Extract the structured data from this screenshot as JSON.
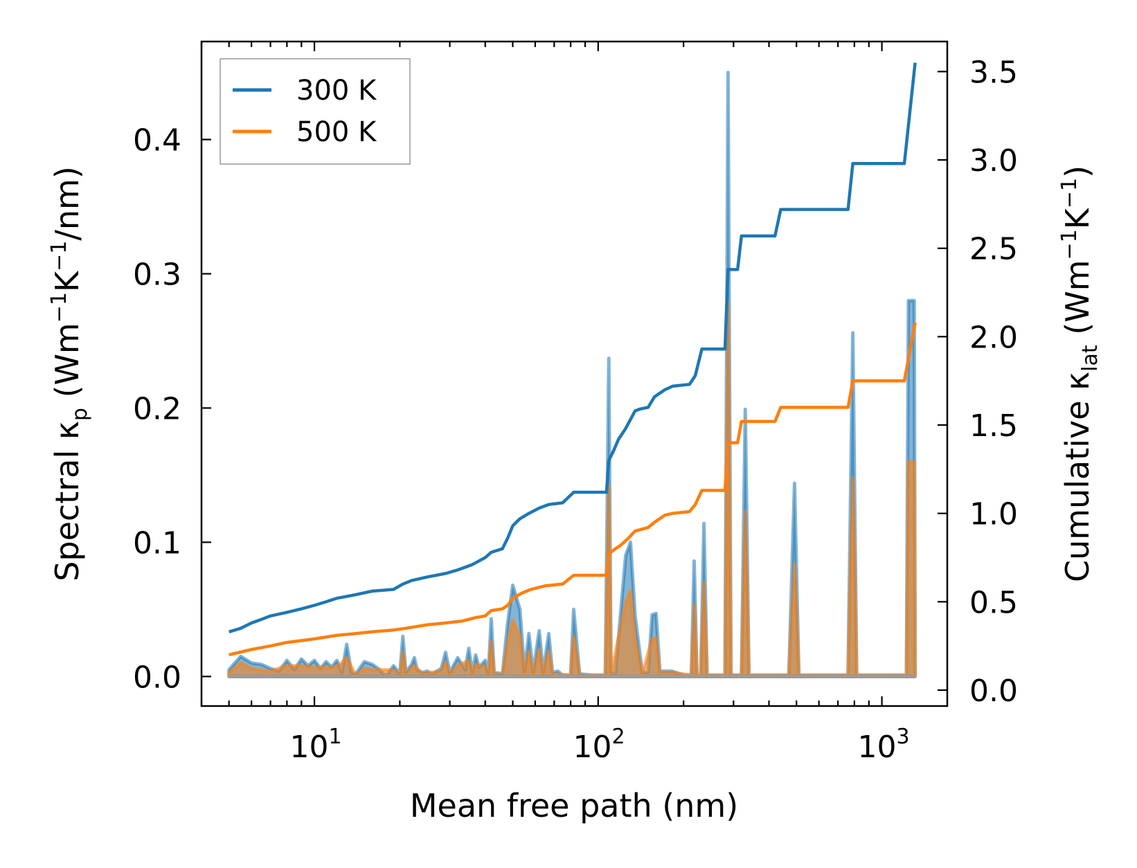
{
  "chart_data": {
    "type": "line+area",
    "x_axis": {
      "label": "Mean free path (nm)",
      "scale": "log",
      "range": [
        4.0,
        1700
      ],
      "tick_labels": [
        {
          "value": 10,
          "base": "10",
          "exp": "1"
        },
        {
          "value": 100,
          "base": "10",
          "exp": "2"
        },
        {
          "value": 1000,
          "base": "10",
          "exp": "3"
        }
      ]
    },
    "y_left": {
      "label_main": "Spectral κ",
      "label_sub": "p",
      "label_unit_open": " (Wm",
      "label_sup1": "−1",
      "label_k": "K",
      "label_sup2": "−1",
      "label_unit_close": "/nm)",
      "range": [
        -0.022,
        0.473
      ],
      "ticks": [
        0.0,
        0.1,
        0.2,
        0.3,
        0.4
      ],
      "tick_labels": [
        "0.0",
        "0.1",
        "0.2",
        "0.3",
        "0.4"
      ]
    },
    "y_right": {
      "label_main": "Cumulative κ",
      "label_sub": "lat",
      "label_unit_open": " (Wm",
      "label_sup1": "−1",
      "label_k": "K",
      "label_sup2": "−1",
      "label_unit_close": ")",
      "range": [
        -0.09,
        3.67
      ],
      "ticks": [
        0.0,
        0.5,
        1.0,
        1.5,
        2.0,
        2.5,
        3.0,
        3.5
      ],
      "tick_labels": [
        "0.0",
        "0.5",
        "1.0",
        "1.5",
        "2.0",
        "2.5",
        "3.0",
        "3.5"
      ]
    },
    "legend": {
      "position": "top-left",
      "entries": [
        {
          "label": "300 K",
          "color": "#1f77b4"
        },
        {
          "label": "500 K",
          "color": "#ff7f0e"
        }
      ]
    },
    "series": [
      {
        "name": "300 K",
        "color": "#1f77b4",
        "cumulative": [
          [
            5.0,
            0.33
          ],
          [
            5.5,
            0.35
          ],
          [
            6.0,
            0.38
          ],
          [
            6.5,
            0.4
          ],
          [
            7.0,
            0.42
          ],
          [
            8.0,
            0.44
          ],
          [
            9.0,
            0.46
          ],
          [
            10.0,
            0.48
          ],
          [
            11.0,
            0.5
          ],
          [
            12.0,
            0.52
          ],
          [
            14.0,
            0.54
          ],
          [
            16.0,
            0.56
          ],
          [
            19.0,
            0.57
          ],
          [
            20.5,
            0.6
          ],
          [
            22.0,
            0.62
          ],
          [
            25.0,
            0.64
          ],
          [
            29.0,
            0.66
          ],
          [
            32.0,
            0.68
          ],
          [
            36.0,
            0.71
          ],
          [
            40.0,
            0.75
          ],
          [
            42.0,
            0.78
          ],
          [
            46.0,
            0.8
          ],
          [
            48.0,
            0.86
          ],
          [
            50.0,
            0.93
          ],
          [
            53.0,
            0.97
          ],
          [
            57.0,
            1.0
          ],
          [
            62.0,
            1.03
          ],
          [
            67.0,
            1.05
          ],
          [
            75.0,
            1.06
          ],
          [
            82.0,
            1.12
          ],
          [
            107.0,
            1.12
          ],
          [
            109.0,
            1.3
          ],
          [
            113.0,
            1.35
          ],
          [
            118.0,
            1.42
          ],
          [
            125.0,
            1.48
          ],
          [
            135.0,
            1.58
          ],
          [
            140.0,
            1.59
          ],
          [
            150.0,
            1.6
          ],
          [
            158.0,
            1.66
          ],
          [
            172.0,
            1.7
          ],
          [
            183.0,
            1.72
          ],
          [
            210.0,
            1.73
          ],
          [
            220.0,
            1.78
          ],
          [
            232.0,
            1.93
          ],
          [
            280.0,
            1.93
          ],
          [
            287.0,
            2.38
          ],
          [
            310.0,
            2.38
          ],
          [
            320.0,
            2.57
          ],
          [
            420.0,
            2.57
          ],
          [
            440.0,
            2.72
          ],
          [
            760.0,
            2.72
          ],
          [
            790.0,
            2.98
          ],
          [
            1200.0,
            2.98
          ],
          [
            1310.0,
            3.55
          ]
        ],
        "spectral": [
          [
            5.0,
            0.005
          ],
          [
            5.5,
            0.015
          ],
          [
            6.0,
            0.01
          ],
          [
            6.5,
            0.009
          ],
          [
            7.0,
            0.006
          ],
          [
            7.5,
            0.004
          ],
          [
            8.0,
            0.012
          ],
          [
            8.5,
            0.005
          ],
          [
            9.0,
            0.013
          ],
          [
            9.5,
            0.008
          ],
          [
            10.0,
            0.012
          ],
          [
            10.5,
            0.006
          ],
          [
            11.0,
            0.011
          ],
          [
            11.5,
            0.007
          ],
          [
            12.0,
            0.012
          ],
          [
            12.5,
            0.003
          ],
          [
            13.0,
            0.024
          ],
          [
            13.5,
            0.003
          ],
          [
            14.0,
            0.002
          ],
          [
            15.0,
            0.011
          ],
          [
            16.0,
            0.009
          ],
          [
            17.0,
            0.005
          ],
          [
            17.5,
            0.002
          ],
          [
            18.0,
            0.001
          ],
          [
            19.0,
            0.008
          ],
          [
            20.0,
            0.002
          ],
          [
            20.5,
            0.03
          ],
          [
            21.0,
            0.003
          ],
          [
            22.0,
            0.009
          ],
          [
            22.5,
            0.014
          ],
          [
            23.0,
            0.005
          ],
          [
            24.0,
            0.003
          ],
          [
            25.0,
            0.004
          ],
          [
            26.0,
            0.002
          ],
          [
            28.0,
            0.006
          ],
          [
            29.0,
            0.018
          ],
          [
            30.0,
            0.003
          ],
          [
            32.0,
            0.014
          ],
          [
            34.0,
            0.005
          ],
          [
            35.0,
            0.021
          ],
          [
            36.0,
            0.003
          ],
          [
            37.0,
            0.016
          ],
          [
            38.0,
            0.007
          ],
          [
            40.0,
            0.012
          ],
          [
            41.0,
            0.002
          ],
          [
            42.0,
            0.043
          ],
          [
            43.0,
            0.003
          ],
          [
            46.0,
            0.002
          ],
          [
            48.0,
            0.04
          ],
          [
            50.0,
            0.068
          ],
          [
            53.0,
            0.05
          ],
          [
            55.0,
            0.004
          ],
          [
            57.0,
            0.032
          ],
          [
            59.0,
            0.003
          ],
          [
            62.0,
            0.034
          ],
          [
            64.0,
            0.003
          ],
          [
            67.0,
            0.032
          ],
          [
            69.0,
            0.003
          ],
          [
            72.0,
            0.004
          ],
          [
            75.0,
            0.001
          ],
          [
            80.0,
            0.001
          ],
          [
            82.0,
            0.05
          ],
          [
            86.0,
            0.002
          ],
          [
            95.0,
            0.001
          ],
          [
            104.0,
            0.001
          ],
          [
            106.0,
            0.001
          ],
          [
            109.0,
            0.237
          ],
          [
            111.0,
            0.003
          ],
          [
            115.0,
            0.002
          ],
          [
            125.0,
            0.09
          ],
          [
            130.0,
            0.1
          ],
          [
            135.0,
            0.045
          ],
          [
            143.0,
            0.003
          ],
          [
            150.0,
            0.003
          ],
          [
            155.0,
            0.046
          ],
          [
            160.0,
            0.047
          ],
          [
            165.0,
            0.004
          ],
          [
            175.0,
            0.004
          ],
          [
            182.0,
            0.004
          ],
          [
            200.0,
            0.001
          ],
          [
            213.0,
            0.001
          ],
          [
            218.0,
            0.086
          ],
          [
            223.0,
            0.001
          ],
          [
            230.0,
            0.001
          ],
          [
            236.0,
            0.114
          ],
          [
            242.0,
            0.001
          ],
          [
            280.0,
            0.001
          ],
          [
            287.0,
            0.45
          ],
          [
            294.0,
            0.001
          ],
          [
            320.0,
            0.001
          ],
          [
            330.0,
            0.199
          ],
          [
            340.0,
            0.001
          ],
          [
            470.0,
            0.001
          ],
          [
            492.0,
            0.144
          ],
          [
            510.0,
            0.001
          ],
          [
            760.0,
            0.001
          ],
          [
            790.0,
            0.256
          ],
          [
            815.0,
            0.001
          ],
          [
            1220.0,
            0.001
          ],
          [
            1240.0,
            0.28
          ],
          [
            1300.0,
            0.28
          ],
          [
            1310.0,
            0.001
          ]
        ]
      },
      {
        "name": "500 K",
        "color": "#ff7f0e",
        "cumulative": [
          [
            5.0,
            0.2
          ],
          [
            6.0,
            0.23
          ],
          [
            7.0,
            0.25
          ],
          [
            8.0,
            0.27
          ],
          [
            9.0,
            0.28
          ],
          [
            10.0,
            0.29
          ],
          [
            12.0,
            0.31
          ],
          [
            14.0,
            0.32
          ],
          [
            16.0,
            0.33
          ],
          [
            19.0,
            0.34
          ],
          [
            21.0,
            0.35
          ],
          [
            25.0,
            0.37
          ],
          [
            29.0,
            0.38
          ],
          [
            33.0,
            0.39
          ],
          [
            37.0,
            0.41
          ],
          [
            40.0,
            0.42
          ],
          [
            42.0,
            0.45
          ],
          [
            46.0,
            0.46
          ],
          [
            48.0,
            0.48
          ],
          [
            50.0,
            0.52
          ],
          [
            54.0,
            0.55
          ],
          [
            58.0,
            0.57
          ],
          [
            65.0,
            0.59
          ],
          [
            75.0,
            0.6
          ],
          [
            82.0,
            0.65
          ],
          [
            107.0,
            0.65
          ],
          [
            109.0,
            0.77
          ],
          [
            115.0,
            0.8
          ],
          [
            120.0,
            0.82
          ],
          [
            128.0,
            0.86
          ],
          [
            135.0,
            0.9
          ],
          [
            150.0,
            0.92
          ],
          [
            158.0,
            0.95
          ],
          [
            172.0,
            0.99
          ],
          [
            183.0,
            1.0
          ],
          [
            210.0,
            1.01
          ],
          [
            220.0,
            1.05
          ],
          [
            232.0,
            1.13
          ],
          [
            280.0,
            1.13
          ],
          [
            287.0,
            1.4
          ],
          [
            310.0,
            1.4
          ],
          [
            320.0,
            1.52
          ],
          [
            420.0,
            1.52
          ],
          [
            440.0,
            1.6
          ],
          [
            760.0,
            1.6
          ],
          [
            790.0,
            1.75
          ],
          [
            1200.0,
            1.75
          ],
          [
            1310.0,
            2.08
          ]
        ],
        "spectral": [
          [
            5.0,
            0.003
          ],
          [
            5.5,
            0.01
          ],
          [
            6.0,
            0.006
          ],
          [
            7.0,
            0.004
          ],
          [
            8.0,
            0.008
          ],
          [
            9.0,
            0.008
          ],
          [
            10.0,
            0.007
          ],
          [
            11.0,
            0.007
          ],
          [
            12.0,
            0.007
          ],
          [
            13.0,
            0.014
          ],
          [
            14.0,
            0.001
          ],
          [
            15.0,
            0.006
          ],
          [
            16.0,
            0.005
          ],
          [
            19.0,
            0.005
          ],
          [
            20.0,
            0.001
          ],
          [
            20.5,
            0.018
          ],
          [
            21.0,
            0.002
          ],
          [
            22.5,
            0.008
          ],
          [
            24.0,
            0.002
          ],
          [
            28.0,
            0.004
          ],
          [
            29.0,
            0.011
          ],
          [
            30.0,
            0.002
          ],
          [
            32.0,
            0.008
          ],
          [
            35.0,
            0.012
          ],
          [
            36.0,
            0.002
          ],
          [
            37.0,
            0.009
          ],
          [
            40.0,
            0.007
          ],
          [
            41.0,
            0.001
          ],
          [
            42.0,
            0.026
          ],
          [
            43.0,
            0.002
          ],
          [
            46.0,
            0.001
          ],
          [
            48.0,
            0.025
          ],
          [
            50.0,
            0.042
          ],
          [
            53.0,
            0.03
          ],
          [
            55.0,
            0.002
          ],
          [
            57.0,
            0.019
          ],
          [
            59.0,
            0.002
          ],
          [
            62.0,
            0.02
          ],
          [
            64.0,
            0.002
          ],
          [
            67.0,
            0.019
          ],
          [
            69.0,
            0.002
          ],
          [
            80.0,
            0.001
          ],
          [
            82.0,
            0.03
          ],
          [
            86.0,
            0.001
          ],
          [
            106.0,
            0.001
          ],
          [
            109.0,
            0.143
          ],
          [
            111.0,
            0.002
          ],
          [
            125.0,
            0.055
          ],
          [
            130.0,
            0.064
          ],
          [
            135.0,
            0.028
          ],
          [
            143.0,
            0.002
          ],
          [
            155.0,
            0.028
          ],
          [
            160.0,
            0.029
          ],
          [
            165.0,
            0.003
          ],
          [
            182.0,
            0.003
          ],
          [
            213.0,
            0.001
          ],
          [
            218.0,
            0.053
          ],
          [
            223.0,
            0.001
          ],
          [
            230.0,
            0.001
          ],
          [
            236.0,
            0.07
          ],
          [
            242.0,
            0.001
          ],
          [
            280.0,
            0.001
          ],
          [
            287.0,
            0.279
          ],
          [
            294.0,
            0.001
          ],
          [
            320.0,
            0.001
          ],
          [
            330.0,
            0.123
          ],
          [
            340.0,
            0.001
          ],
          [
            470.0,
            0.001
          ],
          [
            492.0,
            0.084
          ],
          [
            510.0,
            0.001
          ],
          [
            760.0,
            0.001
          ],
          [
            790.0,
            0.148
          ],
          [
            815.0,
            0.001
          ],
          [
            1220.0,
            0.001
          ],
          [
            1240.0,
            0.16
          ],
          [
            1300.0,
            0.16
          ],
          [
            1310.0,
            0.001
          ]
        ]
      }
    ]
  }
}
